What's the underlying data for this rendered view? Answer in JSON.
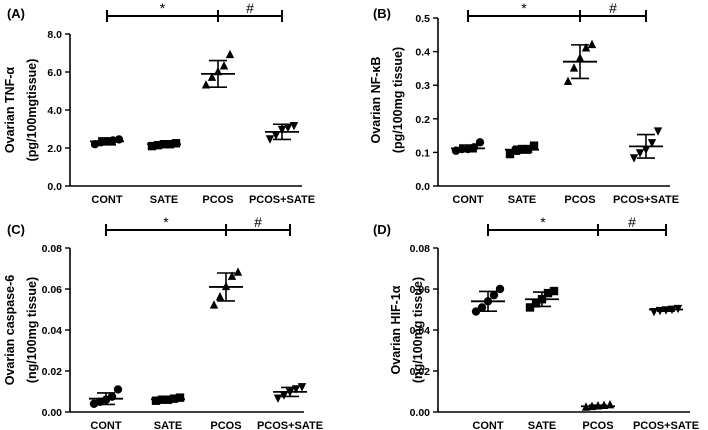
{
  "chart_data": [
    {
      "type": "scatter",
      "panel_label": "(A)",
      "ylabel_line1": "Ovarian TNF-α",
      "ylabel_line2": "(pg/100mgtissue)",
      "categories": [
        "CONT",
        "SATE",
        "PCOS",
        "PCOS+SATE"
      ],
      "markers": [
        "circle",
        "square",
        "triangle-up",
        "triangle-down"
      ],
      "ylim": [
        0,
        8
      ],
      "yticks": [
        0,
        2,
        4,
        6,
        8
      ],
      "ytick_labels": [
        "0.0",
        "2.0",
        "4.0",
        "6.0",
        "8.0"
      ],
      "series": [
        {
          "name": "CONT",
          "mean": 2.35,
          "sd": 0.18,
          "points": [
            2.2,
            2.3,
            2.35,
            2.4,
            2.45
          ]
        },
        {
          "name": "SATE",
          "mean": 2.2,
          "sd": 0.1,
          "points": [
            2.1,
            2.15,
            2.2,
            2.2,
            2.25
          ]
        },
        {
          "name": "PCOS",
          "mean": 5.9,
          "sd": 0.7,
          "points": [
            5.3,
            5.7,
            6.0,
            6.3,
            6.9
          ]
        },
        {
          "name": "PCOS+SATE",
          "mean": 2.85,
          "sd": 0.4,
          "points": [
            2.5,
            2.7,
            3.0,
            3.1,
            3.2
          ]
        }
      ],
      "significance": [
        {
          "from": 0,
          "to": 2,
          "label": "*"
        },
        {
          "from": 2,
          "to": 3,
          "label": "#"
        }
      ]
    },
    {
      "type": "scatter",
      "panel_label": "(B)",
      "ylabel_line1": "Ovarian NF-κB",
      "ylabel_line2": "(pg/100mg tissue)",
      "categories": [
        "CONT",
        "SATE",
        "PCOS",
        "PCOS+SATE"
      ],
      "markers": [
        "circle",
        "square",
        "triangle-up",
        "triangle-down"
      ],
      "ylim": [
        0,
        0.5
      ],
      "yticks": [
        0,
        0.1,
        0.2,
        0.3,
        0.4,
        0.5
      ],
      "ytick_labels": [
        "0.0",
        "0.1",
        "0.2",
        "0.3",
        "0.4",
        "0.5"
      ],
      "series": [
        {
          "name": "CONT",
          "mean": 0.112,
          "sd": 0.01,
          "points": [
            0.105,
            0.11,
            0.11,
            0.115,
            0.13
          ]
        },
        {
          "name": "SATE",
          "mean": 0.108,
          "sd": 0.01,
          "points": [
            0.095,
            0.105,
            0.11,
            0.11,
            0.12
          ]
        },
        {
          "name": "PCOS",
          "mean": 0.37,
          "sd": 0.05,
          "points": [
            0.31,
            0.35,
            0.38,
            0.41,
            0.42
          ]
        },
        {
          "name": "PCOS+SATE",
          "mean": 0.118,
          "sd": 0.035,
          "points": [
            0.085,
            0.1,
            0.11,
            0.13,
            0.165
          ]
        }
      ],
      "significance": [
        {
          "from": 0,
          "to": 2,
          "label": "*"
        },
        {
          "from": 2,
          "to": 3,
          "label": "#"
        }
      ]
    },
    {
      "type": "scatter",
      "panel_label": "(C)",
      "ylabel_line1": "Ovarian caspase-6",
      "ylabel_line2": "(ng/100mg tissue)",
      "categories": [
        "CONT",
        "SATE",
        "PCOS",
        "PCOS+SATE"
      ],
      "markers": [
        "circle",
        "square",
        "triangle-up",
        "triangle-down"
      ],
      "ylim": [
        0,
        0.08
      ],
      "yticks": [
        0,
        0.02,
        0.04,
        0.06,
        0.08
      ],
      "ytick_labels": [
        "0.00",
        "0.02",
        "0.04",
        "0.06",
        "0.08"
      ],
      "series": [
        {
          "name": "CONT",
          "mean": 0.0065,
          "sd": 0.0028,
          "points": [
            0.004,
            0.005,
            0.006,
            0.0075,
            0.011
          ]
        },
        {
          "name": "SATE",
          "mean": 0.0062,
          "sd": 0.0009,
          "points": [
            0.0055,
            0.006,
            0.006,
            0.0065,
            0.007
          ]
        },
        {
          "name": "PCOS",
          "mean": 0.061,
          "sd": 0.0068,
          "points": [
            0.052,
            0.056,
            0.061,
            0.066,
            0.068
          ]
        },
        {
          "name": "PCOS+SATE",
          "mean": 0.0098,
          "sd": 0.0022,
          "points": [
            0.007,
            0.0085,
            0.01,
            0.0115,
            0.0125
          ]
        }
      ],
      "significance": [
        {
          "from": 0,
          "to": 2,
          "label": "*"
        },
        {
          "from": 2,
          "to": 3,
          "label": "#"
        }
      ]
    },
    {
      "type": "scatter",
      "panel_label": "(D)",
      "ylabel_line1": "Ovarian HIF-1α",
      "ylabel_line2": "(ng/100mg tissue)",
      "categories": [
        "CONT",
        "SATE",
        "PCOS",
        "PCOS+SATE"
      ],
      "markers": [
        "circle",
        "square",
        "triangle-up",
        "triangle-down"
      ],
      "ylim": [
        0,
        0.08
      ],
      "yticks": [
        0,
        0.02,
        0.04,
        0.06,
        0.08
      ],
      "ytick_labels": [
        "0.00",
        "0.02",
        "0.04",
        "0.06",
        "0.08"
      ],
      "series": [
        {
          "name": "CONT",
          "mean": 0.054,
          "sd": 0.0048,
          "points": [
            0.049,
            0.051,
            0.054,
            0.057,
            0.06
          ]
        },
        {
          "name": "SATE",
          "mean": 0.055,
          "sd": 0.0035,
          "points": [
            0.051,
            0.053,
            0.055,
            0.058,
            0.059
          ]
        },
        {
          "name": "PCOS",
          "mean": 0.0028,
          "sd": 0.0005,
          "points": [
            0.0022,
            0.0025,
            0.0028,
            0.003,
            0.0033
          ]
        },
        {
          "name": "PCOS+SATE",
          "mean": 0.05,
          "sd": 0.0008,
          "points": [
            0.0492,
            0.0497,
            0.05,
            0.0503,
            0.0507
          ]
        }
      ],
      "significance": [
        {
          "from": 0,
          "to": 2,
          "label": "*"
        },
        {
          "from": 2,
          "to": 3,
          "label": "#"
        }
      ]
    }
  ]
}
